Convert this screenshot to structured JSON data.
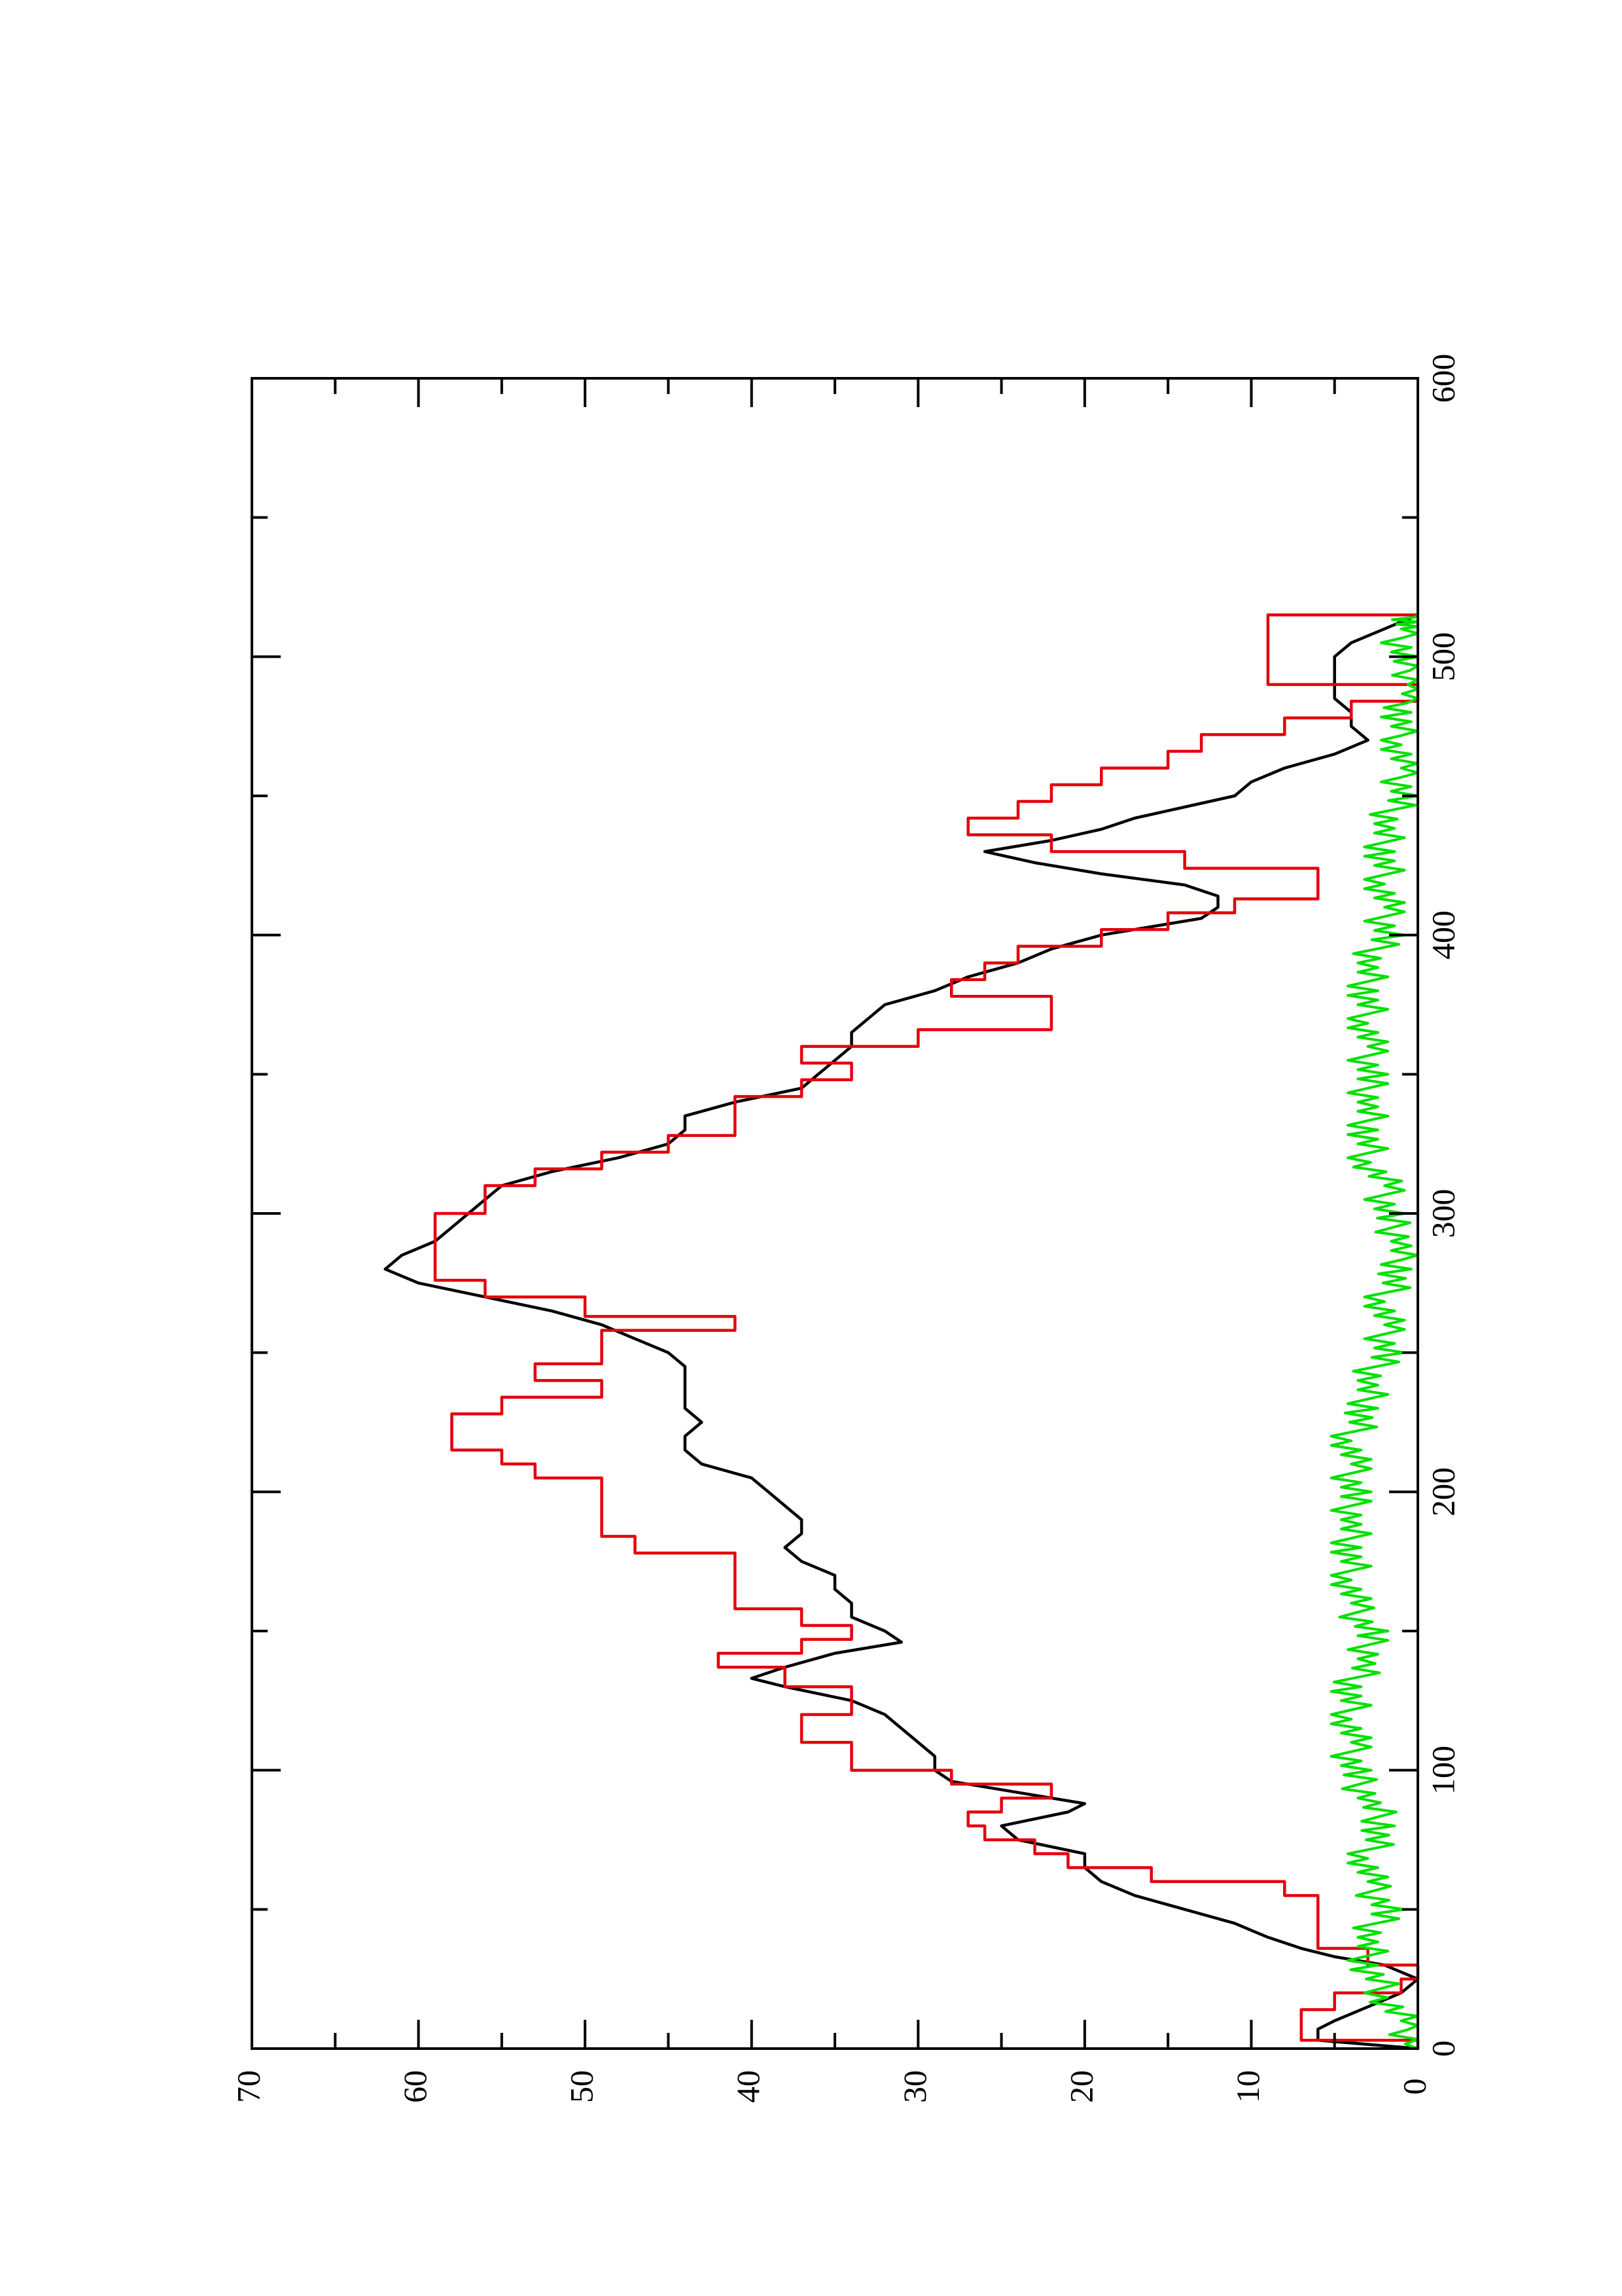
{
  "chart_data": {
    "type": "line",
    "title": "",
    "xlabel": "",
    "ylabel": "",
    "xlim": [
      0,
      600
    ],
    "ylim": [
      0,
      70
    ],
    "orientation": "rotated 90° counter-clockwise (landscape plot on portrait page)",
    "grid": false,
    "legend": "none",
    "x_ticks": [
      "0",
      "100",
      "200",
      "300",
      "400",
      "500",
      "600"
    ],
    "y_ticks": [
      "0",
      "10",
      "20",
      "30",
      "40",
      "50",
      "60",
      "70"
    ],
    "series": [
      {
        "color": "#000000",
        "style": "smooth",
        "x": [
          0,
          3,
          7,
          10,
          15,
          20,
          25,
          30,
          33,
          36,
          40,
          45,
          50,
          55,
          60,
          65,
          70,
          75,
          80,
          85,
          88,
          92,
          96,
          100,
          105,
          110,
          115,
          120,
          125,
          130,
          133,
          137,
          142,
          146,
          150,
          155,
          160,
          165,
          170,
          175,
          180,
          185,
          190,
          195,
          200,
          205,
          210,
          215,
          220,
          225,
          230,
          235,
          240,
          245,
          250,
          255,
          260,
          265,
          270,
          275,
          280,
          285,
          290,
          295,
          300,
          305,
          310,
          315,
          320,
          325,
          330,
          335,
          340,
          345,
          350,
          355,
          360,
          365,
          370,
          375,
          380,
          385,
          390,
          395,
          400,
          403,
          406,
          410,
          414,
          418,
          422,
          426,
          430,
          434,
          438,
          442,
          446,
          450,
          455,
          460,
          465,
          470,
          475,
          480,
          485,
          490,
          495,
          500,
          505,
          510,
          515
        ],
        "y": [
          0,
          6,
          6,
          5,
          3,
          1,
          0,
          2,
          5,
          7,
          9,
          11,
          14,
          17,
          19,
          20,
          20,
          24,
          25,
          21,
          20,
          24,
          28,
          29,
          29,
          30,
          31,
          32,
          34,
          38,
          40,
          38,
          35,
          31,
          32,
          34,
          34,
          35,
          35,
          37,
          38,
          37,
          37,
          38,
          39,
          40,
          43,
          44,
          44,
          43,
          44,
          44,
          44,
          44,
          45,
          47,
          49,
          52,
          56,
          60,
          62,
          61,
          59,
          58,
          57,
          56,
          55,
          52,
          48,
          45,
          44,
          44,
          41,
          37,
          36,
          35,
          34,
          34,
          33,
          32,
          29,
          27,
          24,
          22,
          19,
          16,
          13,
          12,
          12,
          14,
          19,
          23,
          26,
          22,
          19,
          17,
          14,
          11,
          10,
          8,
          5,
          3,
          4,
          4,
          5,
          5,
          5,
          5,
          4,
          2,
          0
        ]
      },
      {
        "color": "#e3000b",
        "style": "step",
        "x": [
          0,
          3,
          10,
          14,
          20,
          25,
          30,
          36,
          45,
          55,
          60,
          65,
          70,
          75,
          80,
          85,
          90,
          95,
          100,
          105,
          110,
          115,
          120,
          125,
          130,
          137,
          142,
          147,
          152,
          158,
          163,
          168,
          172,
          178,
          184,
          190,
          196,
          200,
          205,
          210,
          215,
          222,
          228,
          234,
          240,
          246,
          252,
          258,
          263,
          270,
          276,
          282,
          288,
          294,
          300,
          305,
          310,
          316,
          322,
          328,
          335,
          342,
          348,
          354,
          360,
          366,
          372,
          378,
          384,
          390,
          396,
          402,
          408,
          413,
          418,
          424,
          430,
          436,
          442,
          448,
          454,
          460,
          466,
          472,
          478,
          484,
          490,
          496,
          502,
          508,
          515
        ],
        "y": [
          0,
          7,
          7,
          5,
          1,
          0,
          3,
          6,
          6,
          8,
          16,
          21,
          23,
          26,
          27,
          25,
          22,
          28,
          34,
          34,
          37,
          37,
          34,
          34,
          38,
          42,
          37,
          34,
          37,
          41,
          41,
          41,
          41,
          47,
          49,
          49,
          49,
          49,
          53,
          55,
          58,
          58,
          55,
          49,
          53,
          49,
          49,
          41,
          50,
          56,
          59,
          59,
          59,
          59,
          56,
          56,
          53,
          49,
          45,
          41,
          41,
          37,
          34,
          37,
          30,
          22,
          22,
          28,
          26,
          24,
          19,
          15,
          11,
          6,
          6,
          14,
          22,
          27,
          24,
          22,
          19,
          15,
          13,
          8,
          4,
          0,
          9,
          9,
          9,
          9,
          0
        ]
      },
      {
        "color": "#00e000",
        "style": "noisy",
        "x": [
          0,
          10,
          20,
          30,
          40,
          50,
          60,
          70,
          80,
          90,
          100,
          110,
          120,
          130,
          140,
          150,
          160,
          170,
          180,
          190,
          200,
          210,
          220,
          230,
          240,
          250,
          260,
          270,
          280,
          290,
          300,
          310,
          320,
          330,
          340,
          350,
          360,
          370,
          380,
          390,
          400,
          410,
          420,
          430,
          440,
          450,
          460,
          470,
          480,
          490,
          500,
          510,
          515
        ],
        "y": [
          0,
          1,
          2,
          3,
          3,
          2,
          3,
          3,
          2,
          3,
          4,
          4,
          4,
          4,
          3,
          3,
          4,
          4,
          4,
          4,
          4,
          4,
          4,
          3,
          3,
          2,
          2,
          2,
          1,
          1,
          2,
          2,
          3,
          3,
          3,
          3,
          3,
          3,
          3,
          3,
          2,
          2,
          2,
          2,
          2,
          1,
          1,
          1,
          1,
          0,
          1,
          1,
          0
        ]
      }
    ]
  }
}
